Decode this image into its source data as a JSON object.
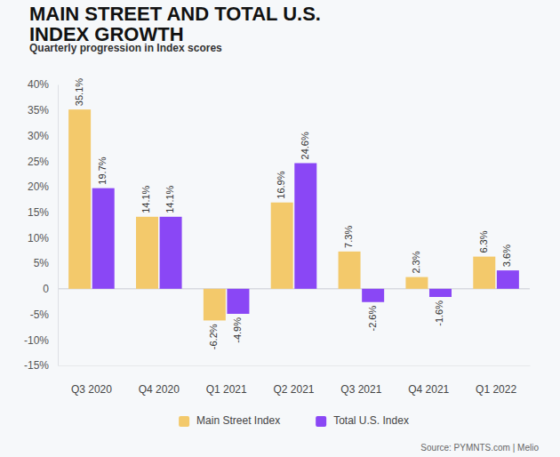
{
  "chart_data": {
    "type": "bar",
    "title": "MAIN STREET AND TOTAL U.S. INDEX GROWTH",
    "subtitle": "Quarterly progression in Index scores",
    "annotations": [
      "Source: PYMNTS.com | Melio"
    ],
    "categories": [
      "Q3 2020",
      "Q4 2020",
      "Q1 2021",
      "Q2 2021",
      "Q3 2021",
      "Q4 2021",
      "Q1 2022"
    ],
    "series": [
      {
        "name": "Main Street Index",
        "color": "#f3c96b",
        "values": [
          35.1,
          14.1,
          -6.2,
          16.9,
          7.3,
          2.3,
          6.3
        ],
        "value_labels": [
          "35.1%",
          "14.1%",
          "-6.2%",
          "16.9%",
          "7.3%",
          "2.3%",
          "6.3%"
        ]
      },
      {
        "name": "Total U.S. Index",
        "color": "#8a47f5",
        "values": [
          19.7,
          14.1,
          -4.9,
          24.6,
          -2.6,
          -1.6,
          3.6
        ],
        "value_labels": [
          "19.7%",
          "14.1%",
          "-4.9%",
          "24.6%",
          "-2.6%",
          "-1.6%",
          "3.6%"
        ]
      }
    ],
    "ylim": [
      -15,
      40
    ],
    "yticks": [
      {
        "value": 40,
        "label": "40%"
      },
      {
        "value": 35,
        "label": "35%"
      },
      {
        "value": 30,
        "label": "30%"
      },
      {
        "value": 25,
        "label": "25%"
      },
      {
        "value": 20,
        "label": "20%"
      },
      {
        "value": 15,
        "label": "15%"
      },
      {
        "value": 10,
        "label": "10%"
      },
      {
        "value": 5,
        "label": "5%"
      },
      {
        "value": 0,
        "label": "0"
      },
      {
        "value": -5,
        "label": "-5%"
      },
      {
        "value": -10,
        "label": "-10%"
      },
      {
        "value": -15,
        "label": "-15%"
      }
    ],
    "grid": false,
    "data_labels": true,
    "legend": "bottom"
  }
}
